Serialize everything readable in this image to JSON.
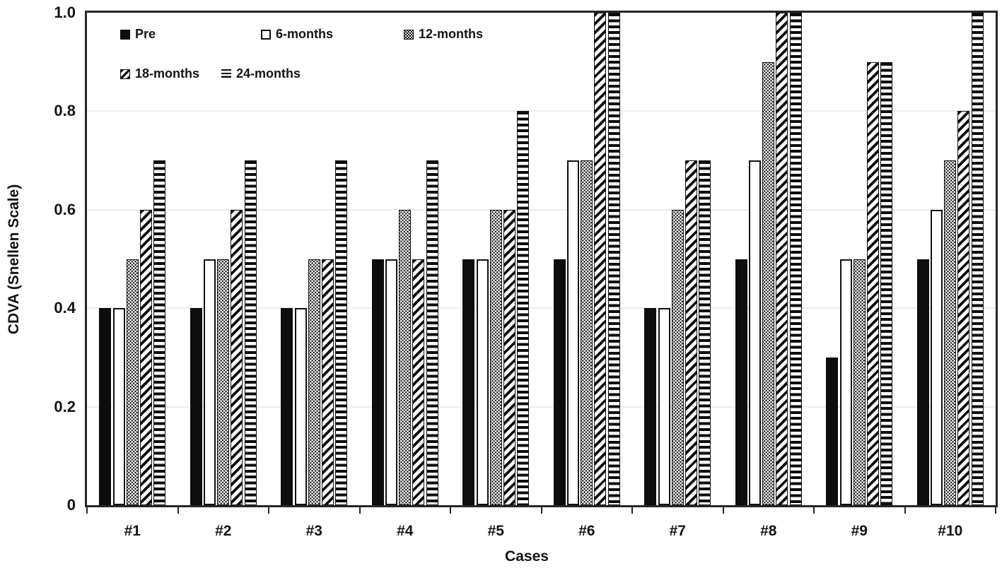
{
  "chart_data": {
    "type": "bar",
    "title": "",
    "xlabel": "Cases",
    "ylabel": "CDVA (Snellen Scale)",
    "ylim": [
      0,
      1.0
    ],
    "yticks": [
      0,
      0.2,
      0.4,
      0.6,
      0.8,
      1.0
    ],
    "ytick_labels": [
      "0",
      "0.2",
      "0.4",
      "0.6",
      "0.8",
      "1.0"
    ],
    "grid": "horizontal-light-at-0.2-steps",
    "legend_position": "top-left-inside-two-rows",
    "categories": [
      "#1",
      "#2",
      "#3",
      "#4",
      "#5",
      "#6",
      "#7",
      "#8",
      "#9",
      "#10"
    ],
    "series": [
      {
        "name": "Pre",
        "pattern": "solid-black",
        "values": [
          0.4,
          0.4,
          0.4,
          0.5,
          0.5,
          0.5,
          0.4,
          0.5,
          0.3,
          0.5
        ]
      },
      {
        "name": "6-months",
        "pattern": "white-open",
        "values": [
          0.4,
          0.5,
          0.4,
          0.5,
          0.5,
          0.7,
          0.4,
          0.7,
          0.5,
          0.6
        ]
      },
      {
        "name": "12-months",
        "pattern": "dotted",
        "values": [
          0.5,
          0.5,
          0.5,
          0.6,
          0.6,
          0.7,
          0.6,
          0.9,
          0.5,
          0.7
        ]
      },
      {
        "name": "18-months",
        "pattern": "diagonal-stripes",
        "values": [
          0.6,
          0.6,
          0.5,
          0.5,
          0.6,
          1.0,
          0.7,
          1.0,
          0.9,
          0.8
        ]
      },
      {
        "name": "24-months",
        "pattern": "horizontal-stripes",
        "values": [
          0.7,
          0.7,
          0.7,
          0.7,
          0.8,
          1.0,
          0.7,
          1.0,
          0.9,
          1.0
        ]
      }
    ]
  },
  "colors": {
    "bar_ink": "#0d0d0d",
    "text": "#141414",
    "frame": "#262626",
    "gridline": "#ececec",
    "background": "#ffffff"
  },
  "layout_note": "grouped bar chart, 10 groups x 5 patterned monochrome bars"
}
